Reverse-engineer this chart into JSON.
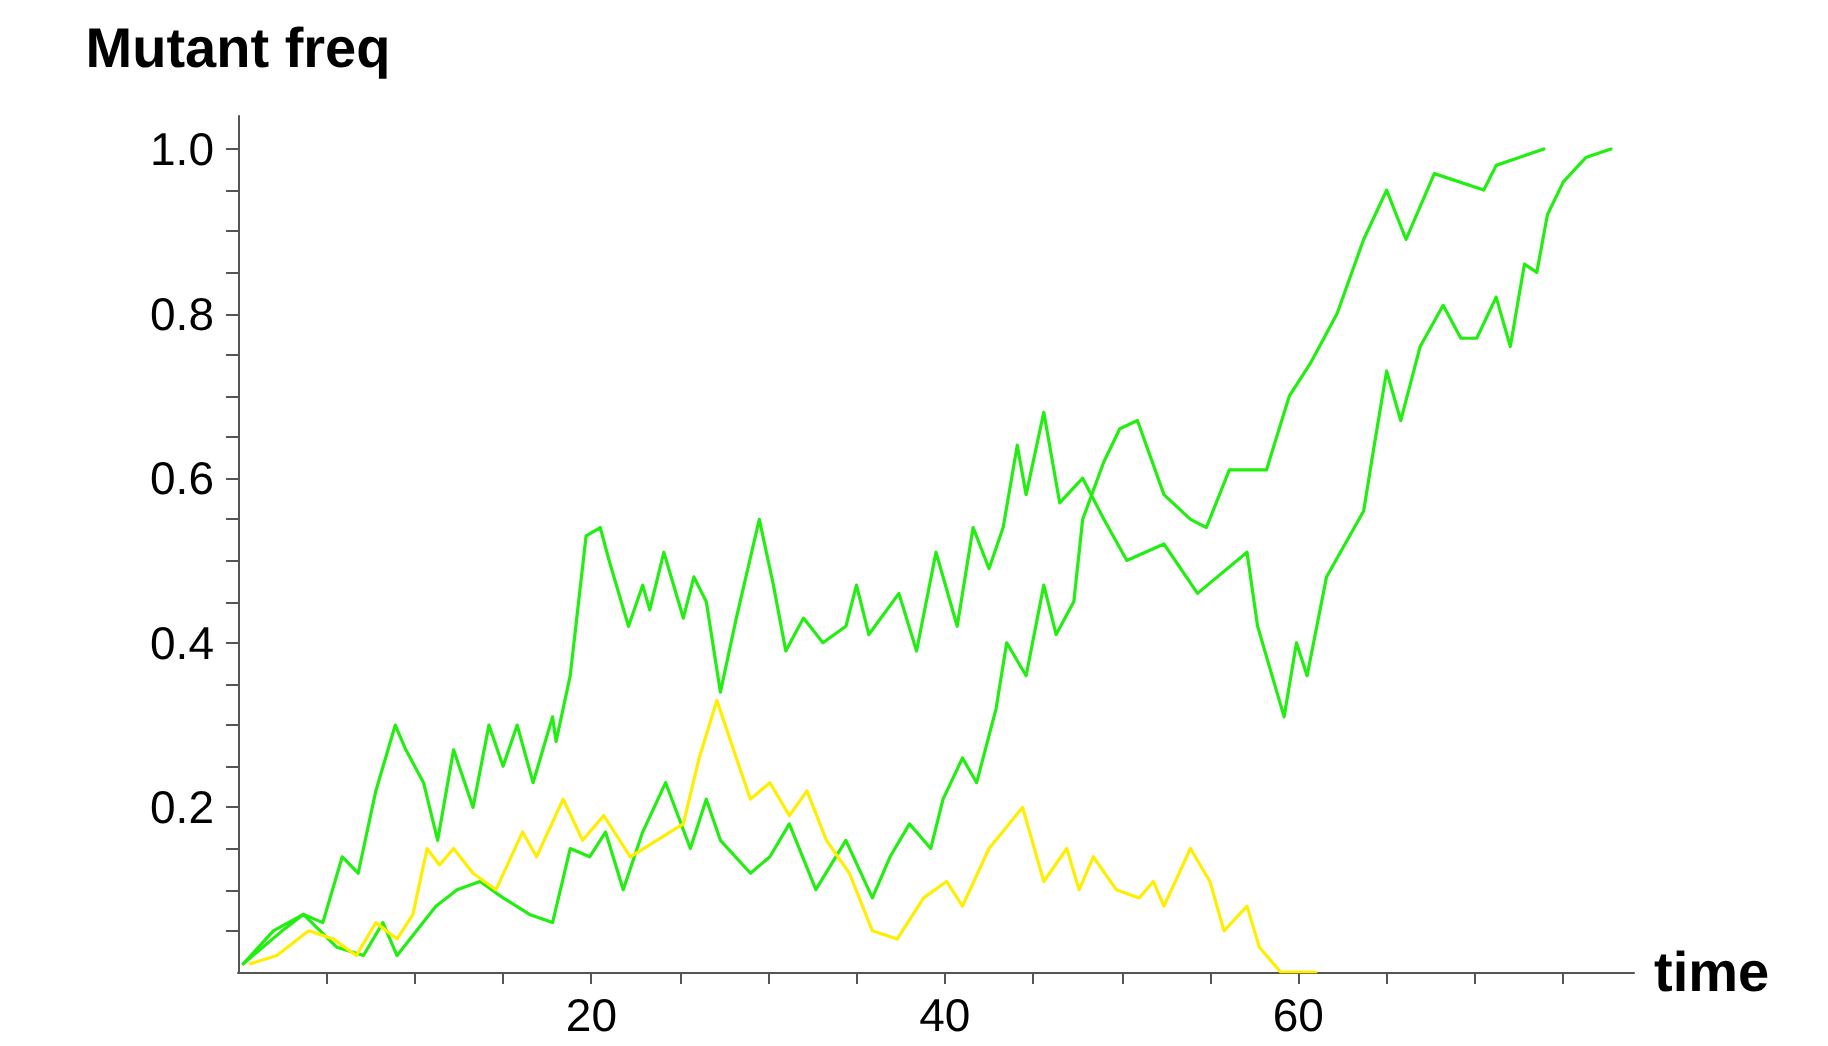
{
  "chart_data": {
    "type": "line",
    "xlabel": "time",
    "ylabel": "Mutant freq",
    "xlim": [
      0,
      79
    ],
    "ylim": [
      0,
      1.04
    ],
    "xticks": [
      {
        "value": 5,
        "label": null
      },
      {
        "value": 10,
        "label": null
      },
      {
        "value": 15,
        "label": null
      },
      20,
      {
        "value": 25,
        "label": null
      },
      {
        "value": 30,
        "label": null
      },
      {
        "value": 35,
        "label": null
      },
      40,
      {
        "value": 45,
        "label": null
      },
      {
        "value": 50,
        "label": null
      },
      {
        "value": 55,
        "label": null
      },
      60,
      {
        "value": 65,
        "label": null
      },
      {
        "value": 70,
        "label": null
      },
      {
        "value": 75,
        "label": null
      }
    ],
    "yticks": [
      {
        "value": 0.05,
        "label": null
      },
      {
        "value": 0.1,
        "label": null
      },
      {
        "value": 0.15,
        "label": null
      },
      0.2,
      {
        "value": 0.25,
        "label": null
      },
      {
        "value": 0.3,
        "label": null
      },
      {
        "value": 0.35,
        "label": null
      },
      0.4,
      {
        "value": 0.45,
        "label": null
      },
      {
        "value": 0.5,
        "label": null
      },
      {
        "value": 0.55,
        "label": null
      },
      0.6,
      {
        "value": 0.65,
        "label": null
      },
      {
        "value": 0.7,
        "label": null
      },
      {
        "value": 0.75,
        "label": null
      },
      0.8,
      {
        "value": 0.85,
        "label": null
      },
      {
        "value": 0.9,
        "label": null
      },
      {
        "value": 0.95,
        "label": null
      },
      {
        "value": 1,
        "label": "1.0"
      }
    ],
    "grid": false,
    "marker": "none",
    "line_style": "solid",
    "series": [
      {
        "color": "#22ee11",
        "x": [
          0.3,
          2,
          3.7,
          4.8,
          5.9,
          6.8,
          7.8,
          8.9,
          9.5,
          10.5,
          11.3,
          12.2,
          13.3,
          14.2,
          15,
          15.8,
          16.7,
          17.8,
          18,
          18.8,
          19.7,
          20.5,
          21,
          22.1,
          22.9,
          23.3,
          24.1,
          25.2,
          25.8,
          26.5,
          27.3,
          28.2,
          29.5,
          30.3,
          31,
          32,
          33.1,
          34.4,
          35,
          35.7,
          37.4,
          38.4,
          39.5,
          40.7,
          41.6,
          42.5,
          43.3,
          44.1,
          44.6,
          45.6,
          46.5,
          47.8,
          49,
          50.3,
          52.4,
          54.3,
          57.1,
          57.7,
          59.2,
          59.9,
          60.5,
          61.6,
          63.7,
          64.3,
          65,
          65.8,
          66.9,
          68.2,
          69.2,
          70.1,
          71.2,
          72,
          72.8,
          73.5,
          74.1,
          75,
          76.3,
          77.7
        ],
        "values": [
          0.01,
          0.05,
          0.07,
          0.06,
          0.14,
          0.12,
          0.22,
          0.3,
          0.27,
          0.23,
          0.16,
          0.27,
          0.2,
          0.3,
          0.25,
          0.3,
          0.23,
          0.31,
          0.28,
          0.36,
          0.53,
          0.54,
          0.5,
          0.42,
          0.47,
          0.44,
          0.51,
          0.43,
          0.48,
          0.45,
          0.34,
          0.43,
          0.55,
          0.47,
          0.39,
          0.43,
          0.4,
          0.42,
          0.47,
          0.41,
          0.46,
          0.39,
          0.51,
          0.42,
          0.54,
          0.49,
          0.54,
          0.64,
          0.58,
          0.68,
          0.57,
          0.6,
          0.55,
          0.5,
          0.52,
          0.46,
          0.51,
          0.42,
          0.31,
          0.4,
          0.36,
          0.48,
          0.56,
          0.64,
          0.73,
          0.67,
          0.76,
          0.81,
          0.77,
          0.77,
          0.82,
          0.76,
          0.86,
          0.85,
          0.92,
          0.96,
          0.99,
          1
        ]
      },
      {
        "color": "#22ee11",
        "x": [
          0.3,
          2.5,
          3.7,
          5.6,
          7.1,
          8.2,
          9,
          11.2,
          12.4,
          13.7,
          15,
          16.5,
          17.8,
          18.8,
          19.9,
          20.8,
          21.8,
          22.9,
          24.2,
          25.6,
          26.5,
          27.3,
          29,
          30.1,
          31.2,
          32.7,
          34.4,
          35.9,
          36.9,
          38,
          39.2,
          39.9,
          41,
          41.8,
          42.9,
          43.5,
          44.6,
          45.6,
          46.3,
          47.3,
          47.8,
          49,
          49.9,
          50.9,
          52.4,
          53.9,
          54.8,
          56.1,
          58.2,
          59.5,
          60.7,
          62.2,
          63.7,
          65,
          66.1,
          67.7,
          70.5,
          71.2,
          73.9
        ],
        "values": [
          0.01,
          0.05,
          0.07,
          0.03,
          0.02,
          0.06,
          0.02,
          0.08,
          0.1,
          0.11,
          0.09,
          0.07,
          0.06,
          0.15,
          0.14,
          0.17,
          0.1,
          0.17,
          0.23,
          0.15,
          0.21,
          0.16,
          0.12,
          0.14,
          0.18,
          0.1,
          0.16,
          0.09,
          0.14,
          0.18,
          0.15,
          0.21,
          0.26,
          0.23,
          0.32,
          0.4,
          0.36,
          0.47,
          0.41,
          0.45,
          0.55,
          0.62,
          0.66,
          0.67,
          0.58,
          0.55,
          0.54,
          0.61,
          0.61,
          0.7,
          0.74,
          0.8,
          0.89,
          0.95,
          0.89,
          0.97,
          0.95,
          0.98,
          1
        ]
      },
      {
        "color": "#ffee00",
        "x": [
          0.7,
          2.2,
          4,
          5.4,
          6.7,
          7.8,
          9,
          9.9,
          10.7,
          11.4,
          12.2,
          13.3,
          14.6,
          16.1,
          16.9,
          18.4,
          19.5,
          20.7,
          22.2,
          23.7,
          25.2,
          26.1,
          27.1,
          28.2,
          29,
          30.1,
          31.2,
          32.2,
          33.3,
          34.6,
          35.9,
          37.3,
          38.8,
          40.1,
          41,
          42.5,
          44.4,
          45.6,
          46.9,
          47.6,
          48.4,
          49.7,
          51,
          51.8,
          52.4,
          53.9,
          55,
          55.8,
          57.1,
          57.8,
          59,
          61
        ],
        "values": [
          0.01,
          0.02,
          0.05,
          0.04,
          0.02,
          0.06,
          0.04,
          0.07,
          0.15,
          0.13,
          0.15,
          0.12,
          0.1,
          0.17,
          0.14,
          0.21,
          0.16,
          0.19,
          0.14,
          0.16,
          0.18,
          0.26,
          0.33,
          0.26,
          0.21,
          0.23,
          0.19,
          0.22,
          0.16,
          0.12,
          0.05,
          0.04,
          0.09,
          0.11,
          0.08,
          0.15,
          0.2,
          0.11,
          0.15,
          0.1,
          0.14,
          0.1,
          0.09,
          0.11,
          0.08,
          0.15,
          0.11,
          0.05,
          0.08,
          0.03,
          0,
          0
        ]
      }
    ]
  }
}
